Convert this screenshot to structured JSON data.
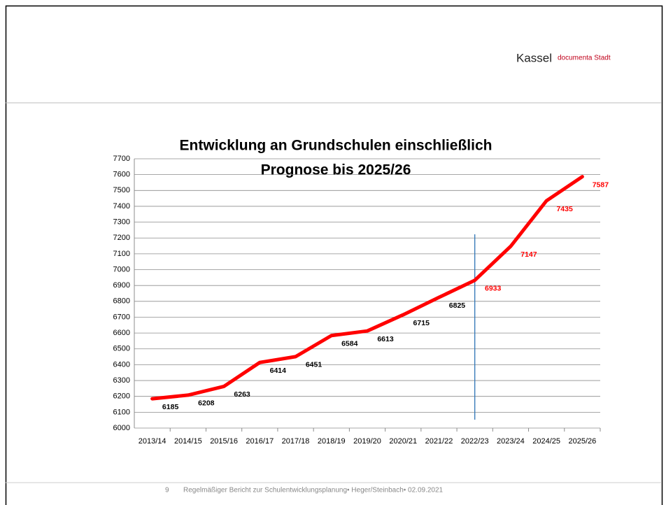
{
  "header": {
    "city": "Kassel",
    "tagline": "documenta Stadt"
  },
  "chart_data": {
    "type": "line",
    "title": [
      "Entwicklung an Grundschulen einschließlich",
      "Prognose bis 2025/26"
    ],
    "categories": [
      "2013/14",
      "2014/15",
      "2015/16",
      "2016/17",
      "2017/18",
      "2018/19",
      "2019/20",
      "2020/21",
      "2021/22",
      "2022/23",
      "2023/24",
      "2024/25",
      "2025/26"
    ],
    "series": [
      {
        "color": "#ff0000",
        "values": [
          6185,
          6208,
          6263,
          6414,
          6451,
          6584,
          6613,
          6715,
          6825,
          6933,
          7147,
          7435,
          7587
        ]
      }
    ],
    "ylim": [
      6000,
      7700
    ],
    "yticks": [
      6000,
      6100,
      6200,
      6300,
      6400,
      6500,
      6600,
      6700,
      6800,
      6900,
      7000,
      7100,
      7200,
      7300,
      7400,
      7500,
      7600,
      7700
    ],
    "grid": true,
    "label_color": "#000000",
    "forecast_label_color": "#ff0000",
    "forecast_from": "2022/23",
    "forecast_line_color": "#2e75b6"
  },
  "footer": {
    "page": "9",
    "text": "Regelmäßiger Bericht zur Schulentwicklungsplanung• Heger/Steinbach• 02.09.2021"
  }
}
